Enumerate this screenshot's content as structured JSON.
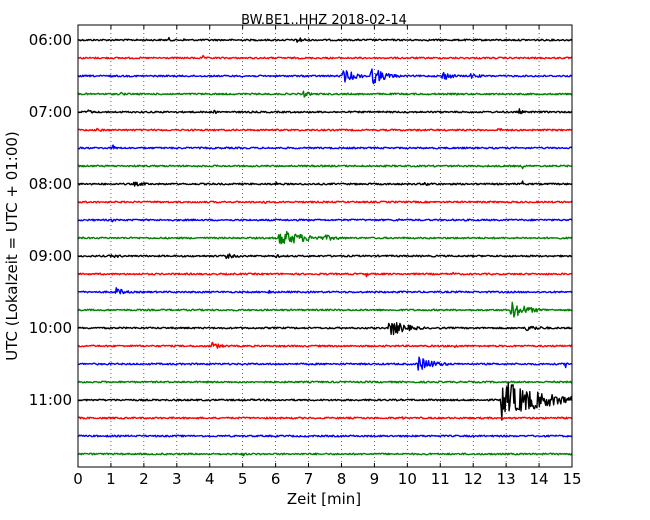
{
  "chart_data": {
    "type": "line",
    "title": "BW.BE1..HHZ 2018-02-14",
    "xlabel": "Zeit  [min]",
    "ylabel": "UTC (Lokalzeit = UTC + 01:00)",
    "xlim": [
      0,
      15
    ],
    "xticks": [
      "0",
      "1",
      "2",
      "3",
      "4",
      "5",
      "6",
      "7",
      "8",
      "9",
      "10",
      "11",
      "12",
      "13",
      "14",
      "15"
    ],
    "yticks": [
      "06:00",
      "07:00",
      "08:00",
      "09:00",
      "10:00",
      "11:00"
    ],
    "trace_interval_minutes": 15,
    "trace_colors": [
      "#000000",
      "#ff0000",
      "#0000ff",
      "#008000"
    ],
    "grid": "vertical dotted",
    "series": [
      {
        "start": "06:00",
        "events": [
          {
            "t": 2.75,
            "amp": 0.3,
            "dur": 0.1
          },
          {
            "t": 3.2,
            "amp": 0.2,
            "dur": 0.1
          },
          {
            "t": 6.65,
            "amp": 0.45,
            "dur": 0.25
          }
        ]
      },
      {
        "start": "06:15",
        "events": [
          {
            "t": 3.8,
            "amp": 0.3,
            "dur": 0.05
          }
        ]
      },
      {
        "start": "06:30",
        "events": [
          {
            "t": 8.05,
            "amp": 0.8,
            "dur": 0.4
          },
          {
            "t": 8.9,
            "amp": 1.1,
            "dur": 0.4
          },
          {
            "t": 11.05,
            "amp": 0.6,
            "dur": 0.3
          },
          {
            "t": 11.9,
            "amp": 0.3,
            "dur": 0.4
          }
        ]
      },
      {
        "start": "06:45",
        "events": [
          {
            "t": 1.3,
            "amp": 0.35,
            "dur": 0.1
          },
          {
            "t": 6.85,
            "amp": 0.4,
            "dur": 0.2
          }
        ]
      },
      {
        "start": "07:00",
        "events": [
          {
            "t": 0.3,
            "amp": 0.45,
            "dur": 0.1
          },
          {
            "t": 4.15,
            "amp": 0.35,
            "dur": 0.05
          },
          {
            "t": 13.4,
            "amp": 0.4,
            "dur": 0.1
          }
        ]
      },
      {
        "start": "07:15",
        "events": [
          {
            "t": 0.55,
            "amp": 0.2,
            "dur": 0.4
          },
          {
            "t": 12.75,
            "amp": 0.2,
            "dur": 0.4
          }
        ]
      },
      {
        "start": "07:30",
        "events": [
          {
            "t": 1.05,
            "amp": 0.45,
            "dur": 0.1
          }
        ]
      },
      {
        "start": "07:45",
        "events": [
          {
            "t": 13.5,
            "amp": 0.45,
            "dur": 0.05
          }
        ]
      },
      {
        "start": "08:00",
        "events": [
          {
            "t": 1.7,
            "amp": 0.25,
            "dur": 0.5
          },
          {
            "t": 6.0,
            "amp": 0.45,
            "dur": 0.05
          },
          {
            "t": 10.5,
            "amp": 0.2,
            "dur": 0.6
          },
          {
            "t": 13.5,
            "amp": 0.4,
            "dur": 0.05
          }
        ]
      },
      {
        "start": "08:15",
        "events": [
          {
            "t": 5.6,
            "amp": 0.4,
            "dur": 0.1
          },
          {
            "t": 12.25,
            "amp": 0.3,
            "dur": 0.05
          }
        ]
      },
      {
        "start": "08:30",
        "events": [
          {
            "t": 1.05,
            "amp": 0.35,
            "dur": 0.05
          },
          {
            "t": 9.7,
            "amp": 0.25,
            "dur": 0.1
          }
        ]
      },
      {
        "start": "08:45",
        "events": [
          {
            "t": 6.1,
            "amp": 1.0,
            "dur": 0.8
          },
          {
            "t": 7.5,
            "amp": 0.35,
            "dur": 0.5
          }
        ]
      },
      {
        "start": "09:00",
        "events": [
          {
            "t": 1.0,
            "amp": 0.2,
            "dur": 0.7
          },
          {
            "t": 4.5,
            "amp": 0.3,
            "dur": 0.4
          },
          {
            "t": 6.0,
            "amp": 0.2,
            "dur": 0.3
          }
        ]
      },
      {
        "start": "09:15",
        "events": [
          {
            "t": 8.75,
            "amp": 0.4,
            "dur": 0.05
          },
          {
            "t": 11.4,
            "amp": 0.4,
            "dur": 0.05
          }
        ]
      },
      {
        "start": "09:30",
        "events": [
          {
            "t": 1.15,
            "amp": 0.5,
            "dur": 0.3
          },
          {
            "t": 5.8,
            "amp": 0.3,
            "dur": 0.1
          }
        ]
      },
      {
        "start": "09:45",
        "events": [
          {
            "t": 13.15,
            "amp": 1.0,
            "dur": 0.5
          }
        ]
      },
      {
        "start": "10:00",
        "events": [
          {
            "t": 9.45,
            "amp": 1.0,
            "dur": 0.5
          },
          {
            "t": 13.6,
            "amp": 0.35,
            "dur": 0.6
          }
        ]
      },
      {
        "start": "10:15",
        "events": [
          {
            "t": 4.0,
            "amp": 0.55,
            "dur": 0.3
          },
          {
            "t": 11.45,
            "amp": 0.3,
            "dur": 0.1
          }
        ]
      },
      {
        "start": "10:30",
        "events": [
          {
            "t": 10.3,
            "amp": 0.9,
            "dur": 0.5
          },
          {
            "t": 14.8,
            "amp": 0.5,
            "dur": 0.05
          }
        ]
      },
      {
        "start": "10:45",
        "events": [
          {
            "t": 3.2,
            "amp": 0.2,
            "dur": 0.1
          }
        ]
      },
      {
        "start": "11:00",
        "events": [
          {
            "t": 12.85,
            "amp": 2.3,
            "dur": 1.2
          },
          {
            "t": 14.1,
            "amp": 0.25,
            "dur": 0.3
          }
        ]
      },
      {
        "start": "11:15",
        "events": [
          {
            "t": 9.85,
            "amp": 0.25,
            "dur": 0.05
          }
        ]
      },
      {
        "start": "11:30",
        "events": [
          {
            "t": 10.7,
            "amp": 0.25,
            "dur": 0.05
          }
        ]
      },
      {
        "start": "11:45",
        "events": [
          {
            "t": 5.0,
            "amp": 0.4,
            "dur": 0.05
          }
        ]
      }
    ]
  }
}
